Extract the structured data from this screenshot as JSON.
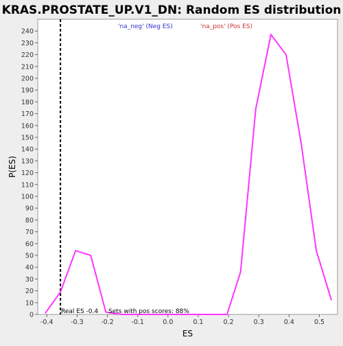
{
  "chart_data": {
    "type": "line",
    "title": "KRAS.PROSTATE_UP.V1_DN: Random ES distribution",
    "xlabel": "ES",
    "ylabel": "P(ES)",
    "xlim": [
      -0.43,
      0.56
    ],
    "ylim": [
      0,
      250
    ],
    "x_ticks": [
      -0.4,
      -0.3,
      -0.2,
      -0.1,
      0.0,
      0.1,
      0.2,
      0.3,
      0.4,
      0.5
    ],
    "x_tick_labels": [
      "-0.4",
      "-0.3",
      "-0.2",
      "-0.1",
      "0.0",
      "0.1",
      "0.2",
      "0.3",
      "0.4",
      "0.5"
    ],
    "y_ticks": [
      0,
      10,
      20,
      30,
      40,
      50,
      60,
      70,
      80,
      90,
      100,
      110,
      120,
      130,
      140,
      150,
      160,
      170,
      180,
      190,
      200,
      210,
      220,
      230,
      240
    ],
    "y_tick_labels": [
      "0",
      "10",
      "20",
      "30",
      "40",
      "50",
      "60",
      "70",
      "80",
      "90",
      "100",
      "110",
      "120",
      "130",
      "140",
      "150",
      "160",
      "170",
      "180",
      "190",
      "200",
      "210",
      "220",
      "230",
      "240"
    ],
    "grid": false,
    "series": [
      {
        "color": "#ff33ff",
        "x": [
          -0.405,
          -0.355,
          -0.305,
          -0.255,
          -0.205,
          -0.155,
          0.195,
          0.24,
          0.29,
          0.34,
          0.39,
          0.44,
          0.49,
          0.54
        ],
        "y": [
          1,
          19,
          54,
          50,
          2,
          0,
          0,
          36,
          174,
          237,
          220,
          145,
          54,
          12
        ]
      }
    ],
    "reference_line": {
      "x": -0.355,
      "label": "Real ES -0.4",
      "color": "#000000",
      "style": "dashed"
    },
    "legend": [
      {
        "label": "'na_neg' (Neg ES)",
        "color": "#3333cc"
      },
      {
        "label": "'na_pos' (Pos ES)",
        "color": "#cc3333"
      }
    ],
    "annotation": "Sets with pos scores: 88%"
  },
  "colors": {
    "plot_bg": "#ffffff",
    "page_bg": "#eeeeee",
    "curve": "#ff33ff"
  }
}
